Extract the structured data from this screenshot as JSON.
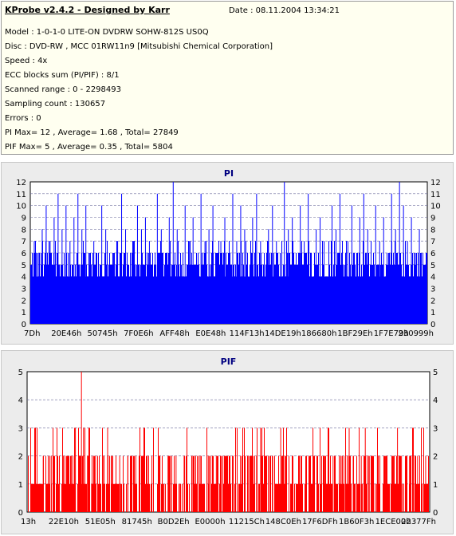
{
  "header": {
    "title": "KProbe v2.4.2 - Designed by Karr",
    "date": "Date : 08.11.2004 13:34:21"
  },
  "info_lines": [
    "Model : 1-0-1-0 LITE-ON DVDRW SOHW-812S  US0Q",
    "Disc : DVD-RW , MCC 01RW11n9 [Mitsubishi Chemical Corporation]",
    "Speed : 4x",
    "ECC blocks sum (PI/PIF) : 8/1",
    "Scanned range : 0 - 2298493",
    "Sampling count : 130657",
    "Errors : 0",
    "PI Max= 12 , Average= 1.68 , Total= 27849",
    "PIF Max= 5 , Average= 0.35 , Total= 5804"
  ],
  "colors": {
    "pi": "#0000ff",
    "pif": "#ff0000",
    "title": "#000080",
    "plot_bg": "#ffffff"
  },
  "chart_data": [
    {
      "type": "bar",
      "title": "PI",
      "ylim": [
        0,
        12
      ],
      "yticks": [
        0,
        1,
        2,
        3,
        4,
        5,
        6,
        7,
        8,
        9,
        10,
        11,
        12
      ],
      "xticklabels": [
        "7Dh",
        "20E46h",
        "50745h",
        "7F0E6h",
        "AFF48h",
        "E0E48h",
        "114F13h",
        "14DE19h",
        "186680h",
        "1BF29Eh",
        "1F7E79h",
        "230999h"
      ],
      "grid": true,
      "baseline": 5,
      "spikes": [
        [
          0.01,
          7
        ],
        [
          0.02,
          6
        ],
        [
          0.03,
          8
        ],
        [
          0.04,
          10
        ],
        [
          0.05,
          7
        ],
        [
          0.06,
          9
        ],
        [
          0.07,
          11
        ],
        [
          0.08,
          8
        ],
        [
          0.09,
          10
        ],
        [
          0.1,
          7
        ],
        [
          0.11,
          9
        ],
        [
          0.12,
          11
        ],
        [
          0.13,
          8
        ],
        [
          0.14,
          10
        ],
        [
          0.15,
          6
        ],
        [
          0.16,
          7
        ],
        [
          0.18,
          10
        ],
        [
          0.19,
          8
        ],
        [
          0.21,
          6
        ],
        [
          0.22,
          7
        ],
        [
          0.23,
          11
        ],
        [
          0.24,
          8
        ],
        [
          0.26,
          7
        ],
        [
          0.27,
          10
        ],
        [
          0.28,
          8
        ],
        [
          0.29,
          9
        ],
        [
          0.3,
          7
        ],
        [
          0.32,
          11
        ],
        [
          0.33,
          8
        ],
        [
          0.35,
          9
        ],
        [
          0.36,
          12
        ],
        [
          0.37,
          8
        ],
        [
          0.39,
          10
        ],
        [
          0.4,
          7
        ],
        [
          0.41,
          9
        ],
        [
          0.43,
          11
        ],
        [
          0.44,
          7
        ],
        [
          0.45,
          8
        ],
        [
          0.46,
          10
        ],
        [
          0.48,
          7
        ],
        [
          0.49,
          9
        ],
        [
          0.51,
          11
        ],
        [
          0.52,
          7
        ],
        [
          0.53,
          10
        ],
        [
          0.54,
          8
        ],
        [
          0.56,
          9
        ],
        [
          0.57,
          11
        ],
        [
          0.58,
          7
        ],
        [
          0.6,
          8
        ],
        [
          0.61,
          10
        ],
        [
          0.62,
          7
        ],
        [
          0.64,
          12
        ],
        [
          0.65,
          8
        ],
        [
          0.66,
          9
        ],
        [
          0.68,
          10
        ],
        [
          0.69,
          7
        ],
        [
          0.7,
          11
        ],
        [
          0.72,
          8
        ],
        [
          0.73,
          9
        ],
        [
          0.74,
          7
        ],
        [
          0.76,
          10
        ],
        [
          0.77,
          8
        ],
        [
          0.78,
          11
        ],
        [
          0.8,
          7
        ],
        [
          0.81,
          10
        ],
        [
          0.83,
          9
        ],
        [
          0.84,
          11
        ],
        [
          0.85,
          8
        ],
        [
          0.87,
          10
        ],
        [
          0.88,
          7
        ],
        [
          0.89,
          9
        ],
        [
          0.91,
          11
        ],
        [
          0.92,
          8
        ],
        [
          0.93,
          12
        ],
        [
          0.94,
          10
        ],
        [
          0.95,
          7
        ],
        [
          0.96,
          9
        ],
        [
          0.97,
          6
        ],
        [
          0.98,
          8
        ],
        [
          0.99,
          5
        ]
      ]
    },
    {
      "type": "bar",
      "title": "PIF",
      "ylim": [
        0,
        5
      ],
      "yticks": [
        0,
        1,
        2,
        3,
        4,
        5
      ],
      "xticklabels": [
        "13h",
        "22E10h",
        "51E05h",
        "81745h",
        "B0D2Eh",
        "E0000h",
        "11215Ch",
        "148C0Eh",
        "17F6DFh",
        "1B60F3h",
        "1ECE00h",
        "22377Fh"
      ],
      "grid": true,
      "baseline": 1,
      "spikes": [
        [
          0.01,
          1
        ],
        [
          0.02,
          2
        ],
        [
          0.04,
          2
        ],
        [
          0.05,
          1
        ],
        [
          0.06,
          2
        ],
        [
          0.08,
          1
        ],
        [
          0.09,
          2
        ],
        [
          0.1,
          1
        ],
        [
          0.11,
          2
        ],
        [
          0.12,
          3
        ],
        [
          0.13,
          2
        ],
        [
          0.135,
          5
        ],
        [
          0.14,
          3
        ],
        [
          0.15,
          2
        ],
        [
          0.16,
          1
        ],
        [
          0.17,
          2
        ],
        [
          0.19,
          2
        ],
        [
          0.2,
          3
        ],
        [
          0.21,
          2
        ],
        [
          0.22,
          1
        ],
        [
          0.23,
          2
        ],
        [
          0.25,
          2
        ],
        [
          0.26,
          1
        ],
        [
          0.27,
          2
        ],
        [
          0.29,
          2
        ],
        [
          0.3,
          1
        ],
        [
          0.31,
          2
        ],
        [
          0.33,
          2
        ],
        [
          0.34,
          1
        ],
        [
          0.35,
          2
        ],
        [
          0.37,
          2
        ],
        [
          0.38,
          1
        ],
        [
          0.39,
          2
        ],
        [
          0.41,
          2
        ],
        [
          0.42,
          1
        ],
        [
          0.43,
          2
        ],
        [
          0.45,
          2
        ],
        [
          0.46,
          1
        ],
        [
          0.47,
          2
        ],
        [
          0.49,
          2
        ],
        [
          0.5,
          1
        ],
        [
          0.51,
          2
        ],
        [
          0.53,
          2
        ],
        [
          0.54,
          1
        ],
        [
          0.55,
          2
        ],
        [
          0.57,
          2
        ],
        [
          0.58,
          3
        ],
        [
          0.59,
          2
        ],
        [
          0.61,
          2
        ],
        [
          0.62,
          1
        ],
        [
          0.63,
          3
        ],
        [
          0.64,
          2
        ],
        [
          0.66,
          2
        ],
        [
          0.67,
          1
        ],
        [
          0.68,
          2
        ],
        [
          0.7,
          2
        ],
        [
          0.71,
          3
        ],
        [
          0.72,
          2
        ],
        [
          0.74,
          2
        ],
        [
          0.75,
          1
        ],
        [
          0.76,
          2
        ],
        [
          0.78,
          2
        ],
        [
          0.79,
          1
        ],
        [
          0.8,
          3
        ],
        [
          0.81,
          2
        ],
        [
          0.83,
          2
        ],
        [
          0.84,
          3
        ],
        [
          0.85,
          2
        ],
        [
          0.86,
          1
        ],
        [
          0.87,
          2
        ],
        [
          0.89,
          2
        ],
        [
          0.9,
          1
        ],
        [
          0.91,
          2
        ],
        [
          0.92,
          3
        ],
        [
          0.93,
          2
        ],
        [
          0.95,
          2
        ],
        [
          0.96,
          1
        ],
        [
          0.97,
          2
        ],
        [
          0.98,
          1
        ],
        [
          0.99,
          2
        ]
      ]
    }
  ]
}
